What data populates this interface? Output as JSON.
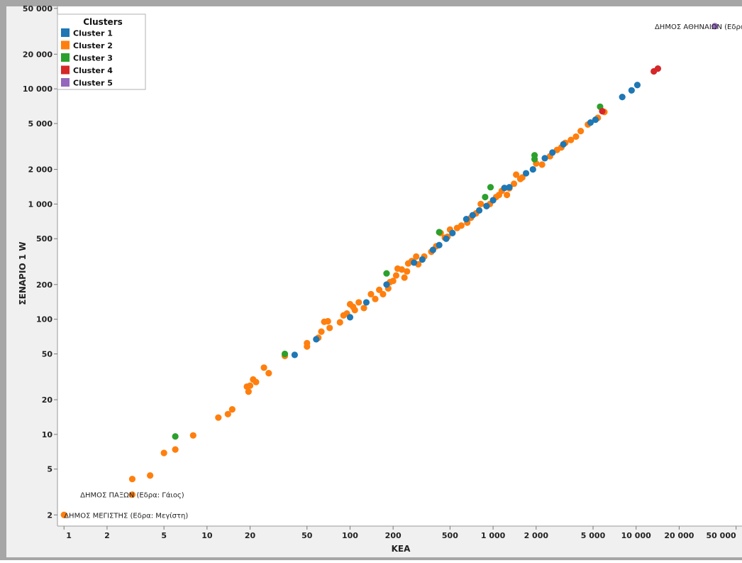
{
  "chart_data": {
    "type": "scatter",
    "title": "",
    "xlabel": "ΚΕΑ",
    "ylabel": "ΣΕΝΑΡΙΟ 1 W",
    "x_scale": "log",
    "y_scale": "log",
    "xlim": [
      0.9,
      55000
    ],
    "ylim": [
      1.6,
      52000
    ],
    "x_ticks": [
      {
        "value": 1,
        "label": "1"
      },
      {
        "value": 2,
        "label": "2"
      },
      {
        "value": 5,
        "label": "5"
      },
      {
        "value": 10,
        "label": "10"
      },
      {
        "value": 20,
        "label": "20"
      },
      {
        "value": 50,
        "label": "50"
      },
      {
        "value": 100,
        "label": "100"
      },
      {
        "value": 200,
        "label": "200"
      },
      {
        "value": 500,
        "label": "500"
      },
      {
        "value": 1000,
        "label": "1 000"
      },
      {
        "value": 2000,
        "label": "2 000"
      },
      {
        "value": 5000,
        "label": "5 000"
      },
      {
        "value": 10000,
        "label": "10 000"
      },
      {
        "value": 20000,
        "label": "20 000"
      },
      {
        "value": 50000,
        "label": "50 000"
      }
    ],
    "y_ticks": [
      {
        "value": 2,
        "label": "2"
      },
      {
        "value": 5,
        "label": "5"
      },
      {
        "value": 10,
        "label": "10"
      },
      {
        "value": 20,
        "label": "20"
      },
      {
        "value": 50,
        "label": "50"
      },
      {
        "value": 100,
        "label": "100"
      },
      {
        "value": 200,
        "label": "200"
      },
      {
        "value": 500,
        "label": "500"
      },
      {
        "value": 1000,
        "label": "1 000"
      },
      {
        "value": 2000,
        "label": "2 000"
      },
      {
        "value": 5000,
        "label": "5 000"
      },
      {
        "value": 10000,
        "label": "10 000"
      },
      {
        "value": 20000,
        "label": "20 000"
      },
      {
        "value": 50000,
        "label": "50 000"
      }
    ],
    "grid": false,
    "legend": {
      "title": "Clusters",
      "position": "top-left"
    },
    "series": [
      {
        "name": "Cluster 1",
        "color": "#1f77b4",
        "points": [
          [
            41,
            49
          ],
          [
            58,
            67
          ],
          [
            100,
            104
          ],
          [
            130,
            140
          ],
          [
            180,
            200
          ],
          [
            280,
            310
          ],
          [
            320,
            330
          ],
          [
            380,
            400
          ],
          [
            420,
            440
          ],
          [
            470,
            500
          ],
          [
            520,
            560
          ],
          [
            650,
            740
          ],
          [
            720,
            800
          ],
          [
            800,
            880
          ],
          [
            900,
            960
          ],
          [
            1000,
            1080
          ],
          [
            1200,
            1380
          ],
          [
            1300,
            1400
          ],
          [
            1700,
            1850
          ],
          [
            1900,
            2000
          ],
          [
            2300,
            2500
          ],
          [
            2600,
            2800
          ],
          [
            3100,
            3300
          ],
          [
            4800,
            5100
          ],
          [
            5200,
            5400
          ],
          [
            8000,
            8500
          ],
          [
            9300,
            9700
          ],
          [
            10200,
            10800
          ]
        ]
      },
      {
        "name": "Cluster 2",
        "color": "#ff7f0e",
        "points": [
          [
            1,
            2
          ],
          [
            3,
            3
          ],
          [
            3,
            4.1
          ],
          [
            4,
            4.4
          ],
          [
            5,
            6.9
          ],
          [
            6,
            7.4
          ],
          [
            8,
            9.8
          ],
          [
            12,
            14
          ],
          [
            14,
            15
          ],
          [
            15,
            16.5
          ],
          [
            19,
            26
          ],
          [
            19.5,
            23.5
          ],
          [
            20,
            26.5
          ],
          [
            21,
            30
          ],
          [
            22,
            28.5
          ],
          [
            25,
            38
          ],
          [
            27,
            34
          ],
          [
            35,
            48
          ],
          [
            50,
            58
          ],
          [
            50,
            62
          ],
          [
            60,
            69
          ],
          [
            63,
            78
          ],
          [
            66,
            95
          ],
          [
            70,
            96
          ],
          [
            72,
            84
          ],
          [
            85,
            94
          ],
          [
            90,
            108
          ],
          [
            95,
            112
          ],
          [
            100,
            135
          ],
          [
            105,
            128
          ],
          [
            108,
            120
          ],
          [
            115,
            140
          ],
          [
            125,
            125
          ],
          [
            140,
            165
          ],
          [
            150,
            150
          ],
          [
            160,
            180
          ],
          [
            170,
            165
          ],
          [
            185,
            185
          ],
          [
            190,
            210
          ],
          [
            200,
            215
          ],
          [
            210,
            240
          ],
          [
            215,
            275
          ],
          [
            230,
            270
          ],
          [
            240,
            230
          ],
          [
            250,
            260
          ],
          [
            255,
            305
          ],
          [
            270,
            320
          ],
          [
            290,
            350
          ],
          [
            300,
            300
          ],
          [
            330,
            350
          ],
          [
            370,
            385
          ],
          [
            400,
            430
          ],
          [
            430,
            560
          ],
          [
            460,
            510
          ],
          [
            480,
            520
          ],
          [
            500,
            600
          ],
          [
            560,
            620
          ],
          [
            600,
            650
          ],
          [
            660,
            690
          ],
          [
            700,
            760
          ],
          [
            760,
            830
          ],
          [
            820,
            1000
          ],
          [
            900,
            960
          ],
          [
            950,
            1000
          ],
          [
            1050,
            1150
          ],
          [
            1100,
            1200
          ],
          [
            1150,
            1300
          ],
          [
            1250,
            1200
          ],
          [
            1300,
            1370
          ],
          [
            1400,
            1500
          ],
          [
            1450,
            1800
          ],
          [
            1550,
            1650
          ],
          [
            1600,
            1700
          ],
          [
            2000,
            2250
          ],
          [
            2200,
            2200
          ],
          [
            2500,
            2600
          ],
          [
            2800,
            2950
          ],
          [
            3000,
            3100
          ],
          [
            3200,
            3400
          ],
          [
            3500,
            3600
          ],
          [
            3800,
            3850
          ],
          [
            4100,
            4300
          ],
          [
            4600,
            4900
          ],
          [
            5400,
            5600
          ],
          [
            6000,
            6300
          ]
        ]
      },
      {
        "name": "Cluster 3",
        "color": "#2ca02c",
        "points": [
          [
            6,
            9.6
          ],
          [
            35,
            50
          ],
          [
            180,
            250
          ],
          [
            420,
            570
          ],
          [
            880,
            1150
          ],
          [
            960,
            1400
          ],
          [
            1950,
            2450
          ],
          [
            1950,
            2650
          ],
          [
            5600,
            7000
          ]
        ]
      },
      {
        "name": "Cluster 4",
        "color": "#d62728",
        "points": [
          [
            5800,
            6400
          ],
          [
            13300,
            14200
          ],
          [
            14200,
            15000
          ]
        ]
      },
      {
        "name": "Cluster 5",
        "color": "#9467bd",
        "points": [
          [
            35500,
            35000
          ]
        ]
      }
    ],
    "annotations": [
      {
        "text": "ΔΗΜΟΣ ΑΘΗΝΑΙΩΝ (Εδρα: Αθήνα)",
        "x": 35500,
        "y": 35000
      },
      {
        "text": "ΔΗΜΟΣ ΠΑΞΩΝ (Εδρα: Γάιος)",
        "x": 3,
        "y": 3
      },
      {
        "text": "ΔΗΜΟΣ ΜΕΓΙΣΤΗΣ (Εδρα: Μεγίστη)",
        "x": 1,
        "y": 2
      }
    ]
  }
}
